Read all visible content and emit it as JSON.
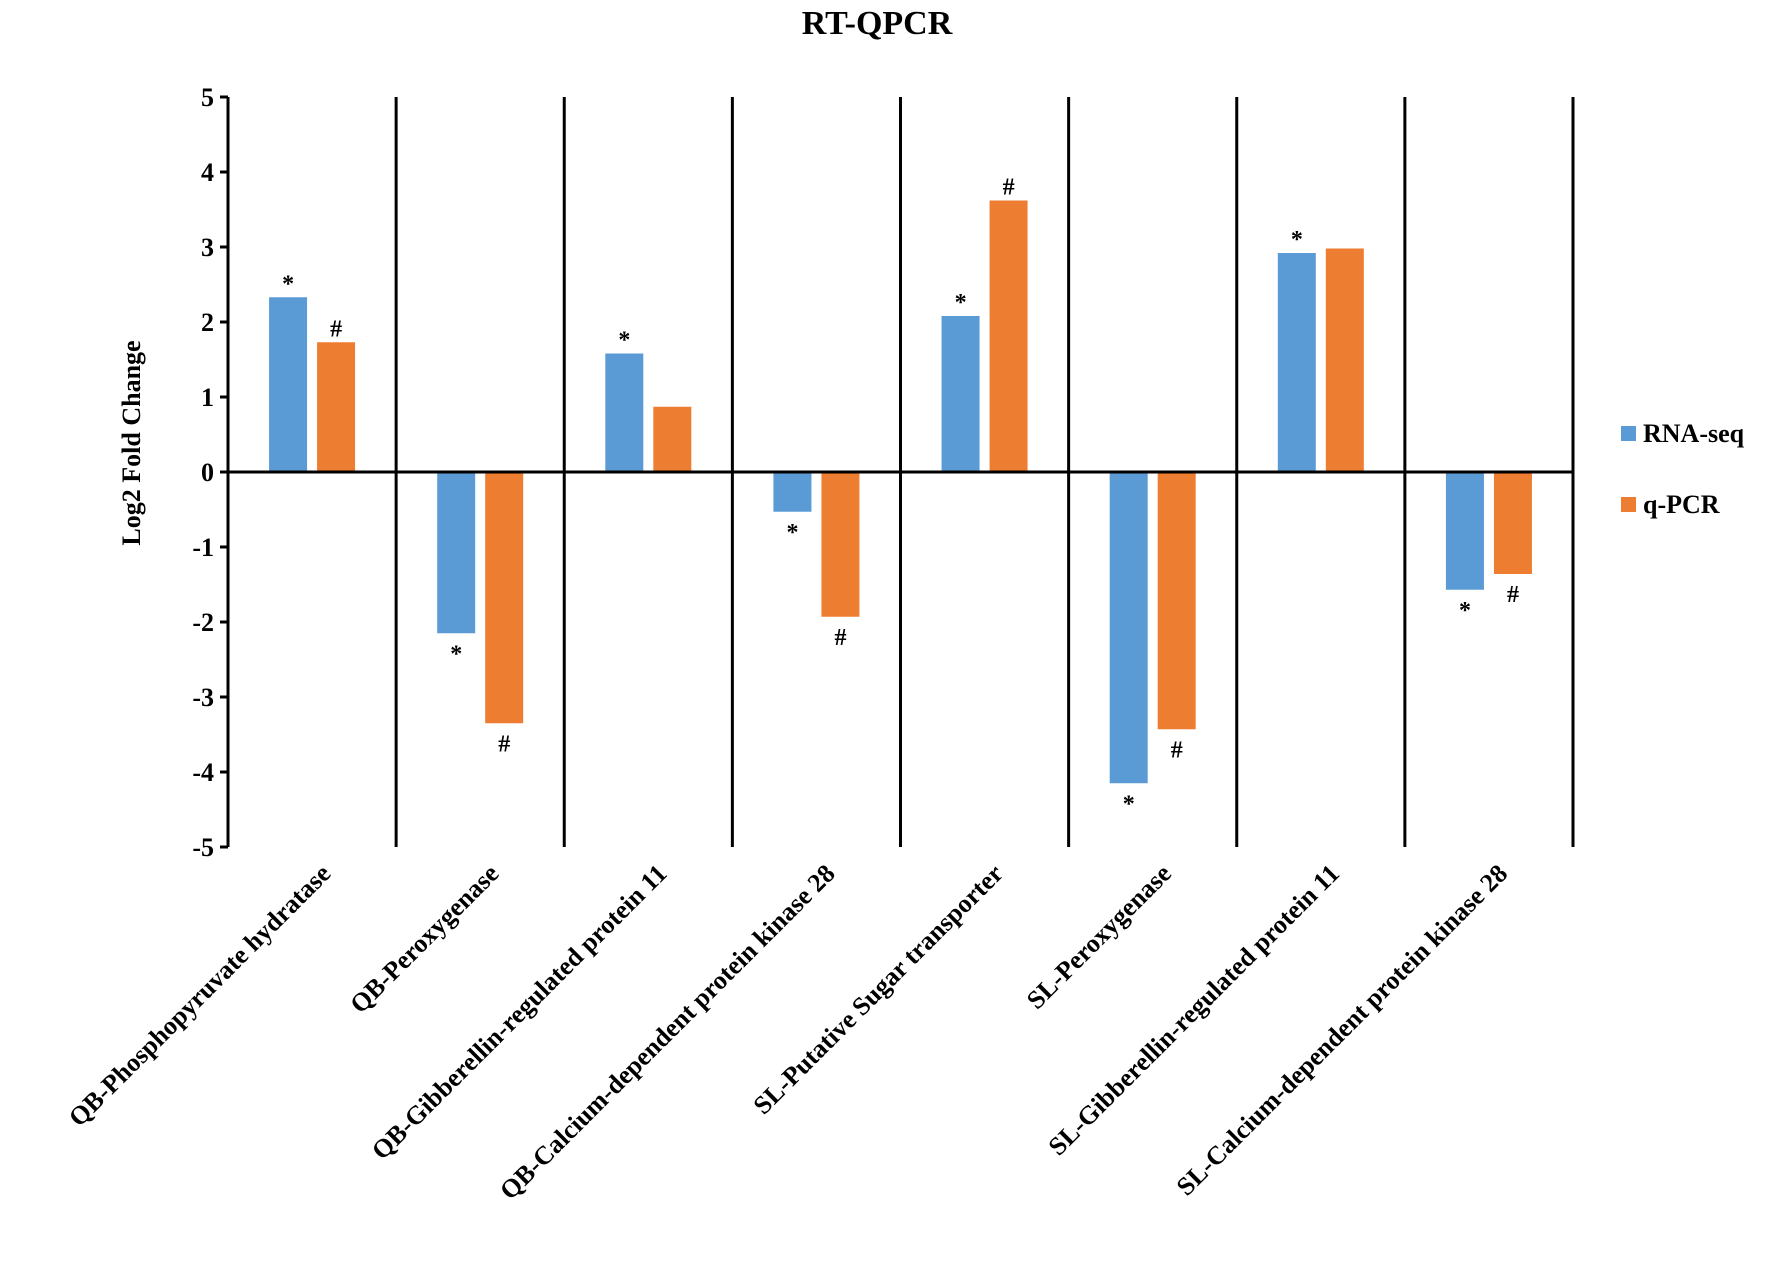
{
  "chart_data": {
    "type": "bar",
    "title": "RT-QPCR",
    "xlabel": "",
    "ylabel": "Log2 Fold Change",
    "ylim": [
      -5,
      5
    ],
    "yticks": [
      5,
      4,
      3,
      2,
      1,
      0,
      -1,
      -2,
      -3,
      -4,
      -5
    ],
    "grid": false,
    "legend_position": "right",
    "categories": [
      "QB-Phosphopyruvate hydratase",
      "QB-Peroxygenase",
      "QB-Gibberellin-regulated protein 11",
      "QB-Calcium-dependent protein kinase 28",
      "SL-Putative Sugar transporter",
      "SL-Peroxygenase",
      "SL-Gibberellin-regulated protein 11",
      "SL-Calcium-dependent protein kinase 28"
    ],
    "series": [
      {
        "name": "RNA-seq",
        "color": "#5b9bd5",
        "values": [
          2.33,
          -2.15,
          1.58,
          -0.53,
          2.08,
          -4.15,
          2.92,
          -1.57
        ],
        "markers": [
          "*",
          "*",
          "*",
          "*",
          "*",
          "*",
          "*",
          "*"
        ]
      },
      {
        "name": "q-PCR",
        "color": "#ed7d31",
        "values": [
          1.73,
          -3.35,
          0.87,
          -1.93,
          3.62,
          -3.43,
          2.98,
          -1.36
        ],
        "markers": [
          "#",
          "#",
          "",
          "#",
          "#",
          "#",
          "",
          "#"
        ]
      }
    ]
  }
}
